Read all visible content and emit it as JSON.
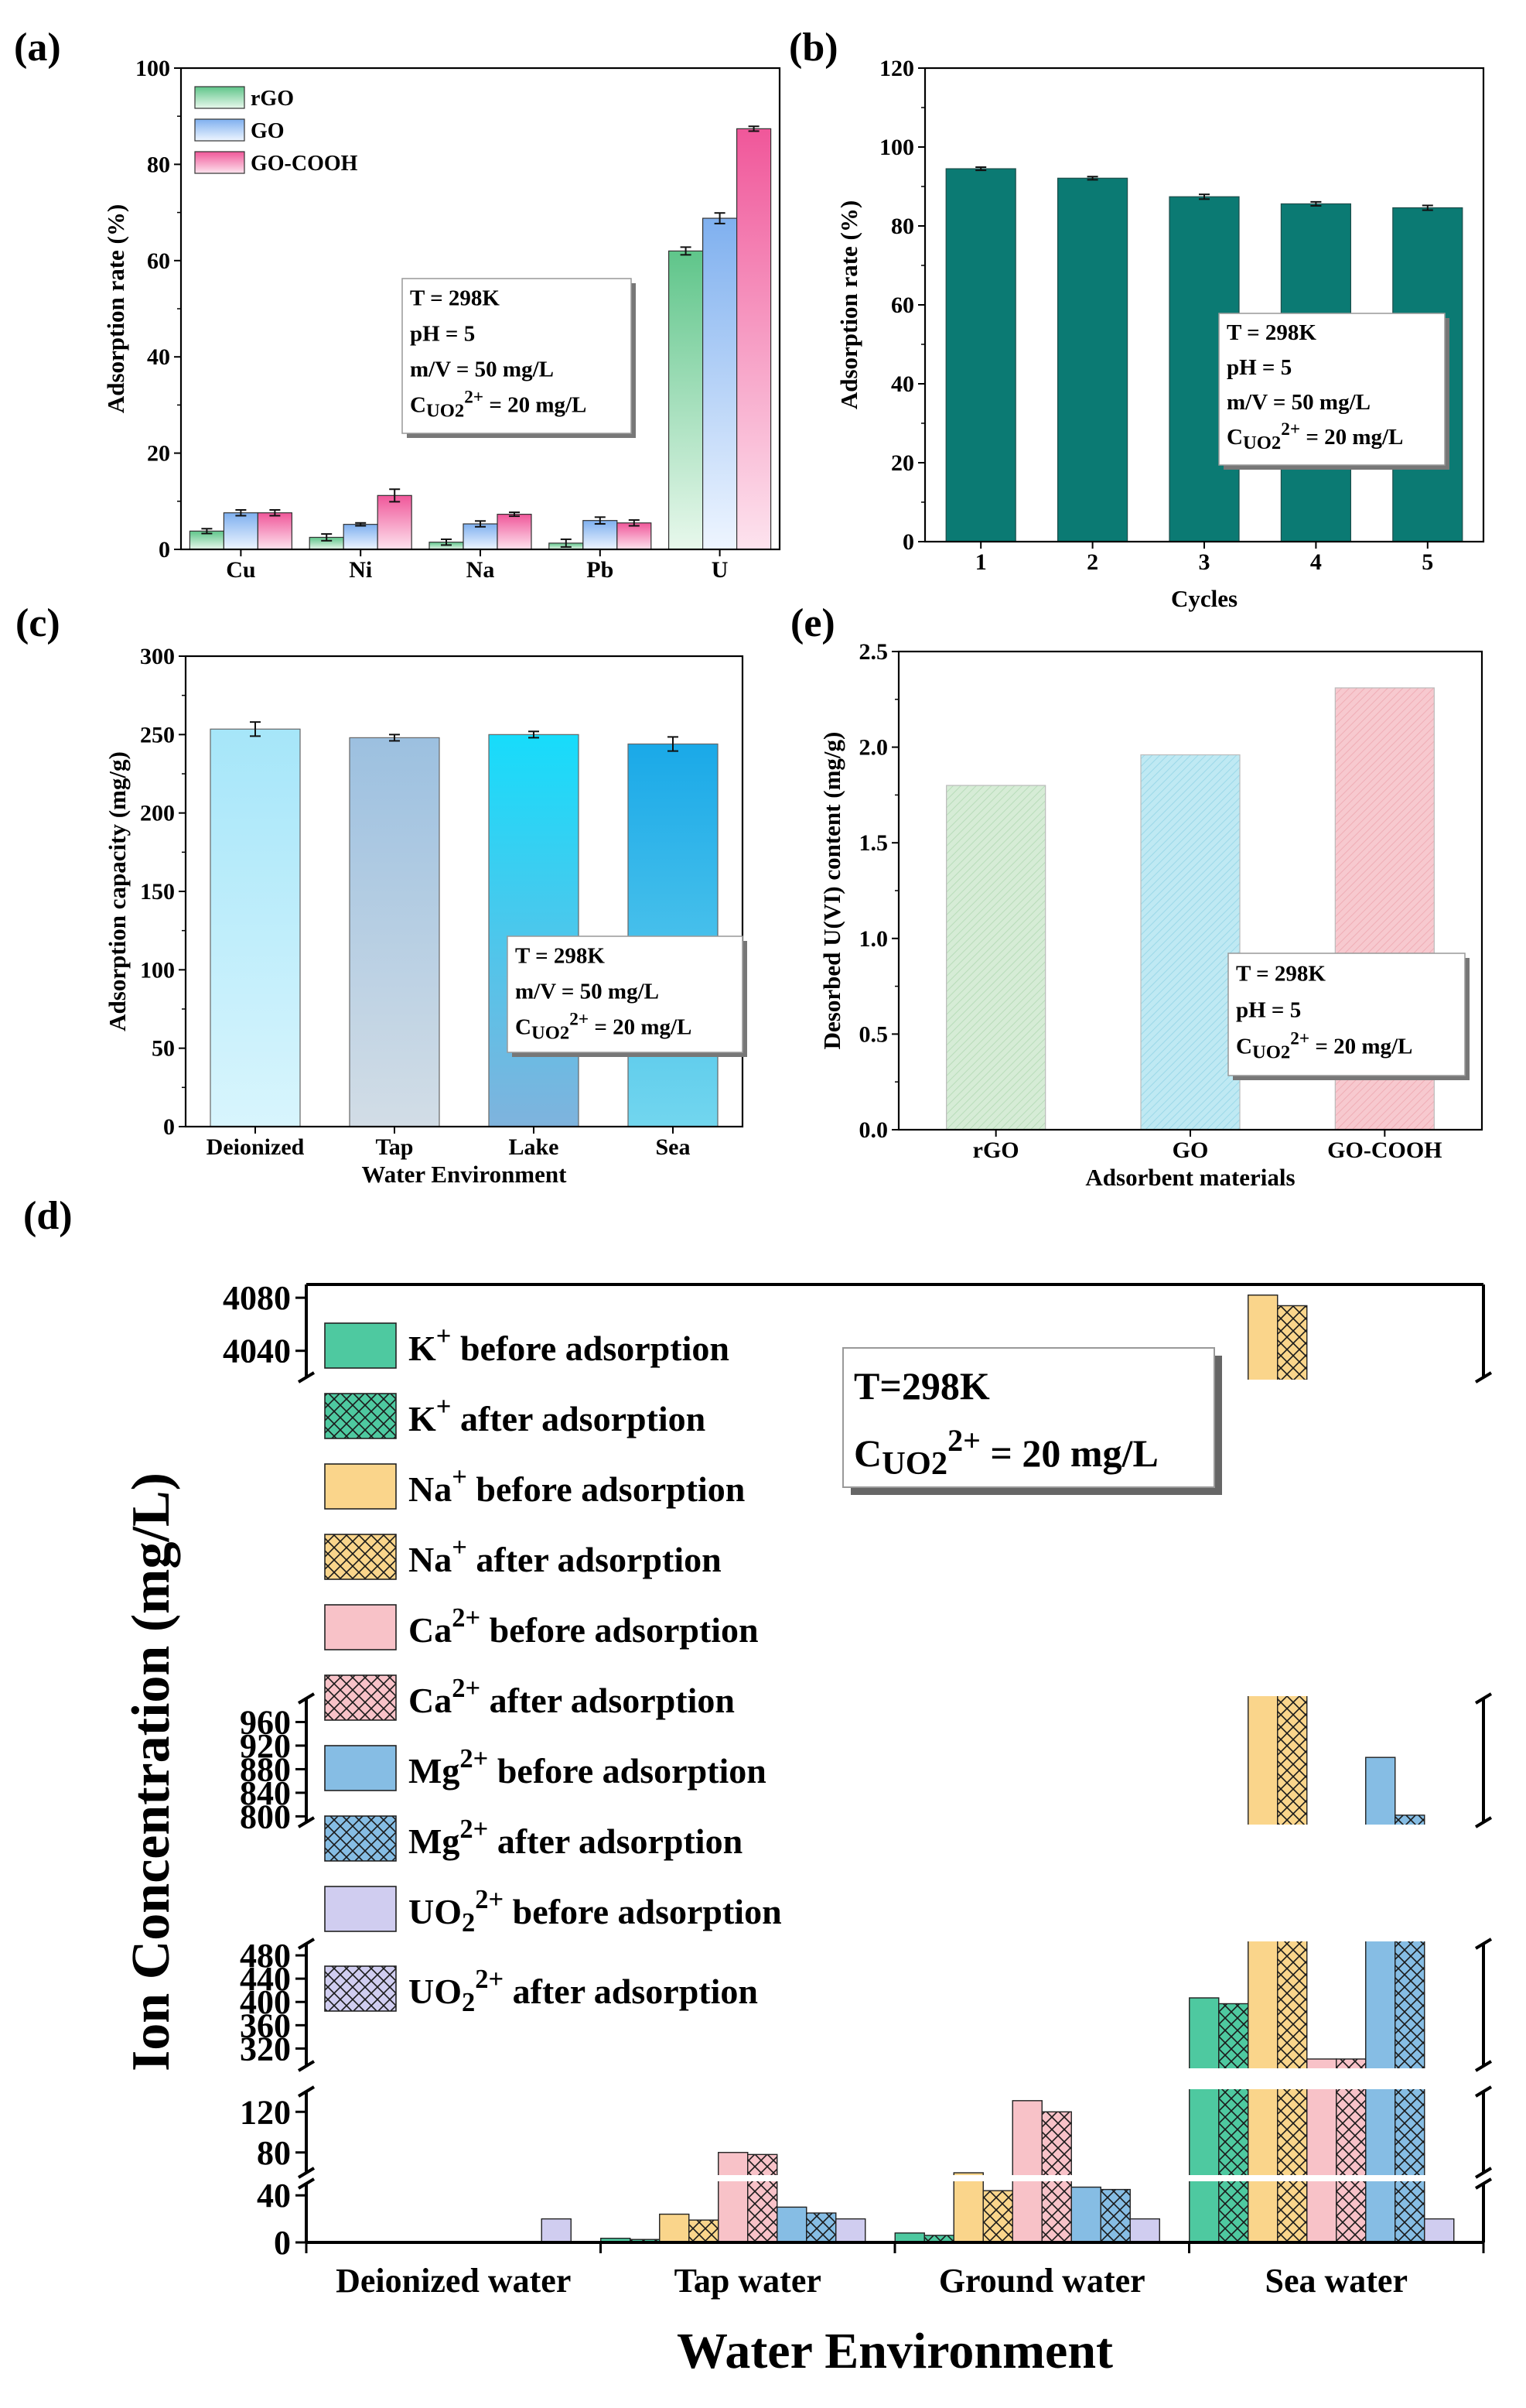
{
  "panels": [
    {
      "id": "a",
      "label": "(a)",
      "annotation": [
        "T = 298K",
        "pH = 5",
        "m/V = 50 mg/L",
        "C_UO2^2+ = 20 mg/L"
      ],
      "chart_data": {
        "type": "bar",
        "title": "",
        "xlabel": "",
        "ylabel": "Adsorption rate (%)",
        "ylim": [
          0,
          100
        ],
        "yticks": [
          0,
          20,
          40,
          60,
          80,
          100
        ],
        "categories": [
          "Cu",
          "Ni",
          "Na",
          "Pb",
          "U"
        ],
        "legend_position": "top-left",
        "series": [
          {
            "name": "rGO",
            "color": "#86d6a1",
            "values": [
              3.8,
              2.5,
              1.5,
              1.3,
              62
            ],
            "errors": [
              0.5,
              0.7,
              0.6,
              0.8,
              0.8
            ]
          },
          {
            "name": "GO",
            "color": "#a3c6f3",
            "values": [
              7.6,
              5.2,
              5.3,
              6.0,
              68.8
            ],
            "errors": [
              0.6,
              0.3,
              0.6,
              0.7,
              1.1
            ]
          },
          {
            "name": "GO-COOH",
            "color": "#f479a8",
            "values": [
              7.6,
              11.2,
              7.3,
              5.5,
              87.4
            ],
            "errors": [
              0.6,
              1.3,
              0.4,
              0.6,
              0.5
            ]
          }
        ]
      }
    },
    {
      "id": "b",
      "label": "(b)",
      "annotation": [
        "T = 298K",
        "pH = 5",
        "m/V = 50 mg/L",
        "C_UO2^2+ = 20 mg/L"
      ],
      "chart_data": {
        "type": "bar",
        "title": "",
        "xlabel": "Cycles",
        "ylabel": "Adsorption rate (%)",
        "ylim": [
          0,
          120
        ],
        "yticks": [
          0,
          20,
          40,
          60,
          80,
          100,
          120
        ],
        "categories": [
          "1",
          "2",
          "3",
          "4",
          "5"
        ],
        "series": [
          {
            "name": "",
            "color": "#0b7a73",
            "values": [
              94.5,
              92.1,
              87.4,
              85.6,
              84.6
            ],
            "errors": [
              0.4,
              0.4,
              0.6,
              0.5,
              0.6
            ]
          }
        ]
      }
    },
    {
      "id": "c",
      "label": "(c)",
      "annotation": [
        "T = 298K",
        "m/V = 50 mg/L",
        "C_UO2^2+ = 20 mg/L"
      ],
      "chart_data": {
        "type": "bar",
        "title": "",
        "xlabel": "Water Environment",
        "ylabel": "Adsorption capacity (mg/g)",
        "ylim": [
          0,
          300
        ],
        "yticks": [
          0,
          50,
          100,
          150,
          200,
          250,
          300
        ],
        "categories": [
          "Deionized",
          "Tap",
          "Lake",
          "Sea"
        ],
        "series": [
          {
            "name": "",
            "colors": [
              "#b9ecfb",
              "#a4c5e3",
              "#1fdcf9",
              "#25bdec"
            ],
            "values": [
              253.5,
              248,
              250,
              244
            ],
            "errors": [
              4.5,
              2.0,
              2.0,
              4.5
            ]
          }
        ]
      }
    },
    {
      "id": "e",
      "label": "(e)",
      "annotation": [
        "T = 298K",
        "pH = 5",
        "C_UO2^2+ = 20 mg/L"
      ],
      "chart_data": {
        "type": "bar",
        "title": "",
        "xlabel": "Adsorbent materials",
        "ylabel": "Desorbed U(VI) content (mg/g)",
        "ylim": [
          0,
          2.5
        ],
        "yticks": [
          0.0,
          0.5,
          1.0,
          1.5,
          2.0,
          2.5
        ],
        "categories": [
          "rGO",
          "GO",
          "GO-COOH"
        ],
        "series": [
          {
            "name": "",
            "colors": [
              "#d6ecd6",
              "#bfe9f3",
              "#f7c9cf"
            ],
            "values": [
              1.8,
              1.96,
              2.31
            ]
          }
        ]
      }
    },
    {
      "id": "d",
      "label": "(d)",
      "annotation": [
        "T=298K",
        "C_UO2^2+ = 20 mg/L"
      ],
      "chart_data": {
        "type": "bar",
        "title": "",
        "xlabel": "Water Environment",
        "ylabel": "Ion Concentration (mg/L)",
        "y_axis": "broken",
        "y_segments": [
          {
            "range": [
              0,
              50
            ],
            "ticks": [
              0,
              40
            ]
          },
          {
            "range": [
              60,
              140
            ],
            "ticks": [
              80,
              120
            ]
          },
          {
            "range": [
              290,
              500
            ],
            "ticks": [
              320,
              360,
              400,
              440,
              480
            ]
          },
          {
            "range": [
              790,
              1000
            ],
            "ticks": [
              800,
              840,
              880,
              920,
              960
            ]
          },
          {
            "range": [
              4020,
              4090
            ],
            "ticks": [
              4040,
              4080
            ]
          }
        ],
        "categories": [
          "Deionized water",
          "Tap water",
          "Ground water",
          "Sea water"
        ],
        "series": [
          {
            "name": "K+ before adsorption",
            "color": "#4ec9a0",
            "hatched": false,
            "values": [
              0,
              3.5,
              8,
              407
            ]
          },
          {
            "name": "K+ after adsorption",
            "color": "#4ec9a0",
            "hatched": true,
            "values": [
              0,
              2.5,
              6,
              397
            ]
          },
          {
            "name": "Na+ before adsorption",
            "color": "#fad58b",
            "hatched": false,
            "values": [
              0,
              24,
              55,
              4082
            ]
          },
          {
            "name": "Na+ after adsorption",
            "color": "#fad58b",
            "hatched": true,
            "values": [
              0,
              19,
              44,
              4074
            ]
          },
          {
            "name": "Ca2+ before adsorption",
            "color": "#f8c2c8",
            "hatched": false,
            "values": [
              0,
              80,
              131,
              302
            ]
          },
          {
            "name": "Ca2+ after adsorption",
            "color": "#f8c2c8",
            "hatched": true,
            "values": [
              0,
              78,
              120,
              302
            ]
          },
          {
            "name": "Mg2+ before adsorption",
            "color": "#86bde4",
            "hatched": false,
            "values": [
              0,
              30,
              47,
              900
            ]
          },
          {
            "name": "Mg2+ after adsorption",
            "color": "#86bde4",
            "hatched": true,
            "values": [
              0,
              25,
              45,
              802
            ]
          },
          {
            "name": "UO2 2+ before adsorption",
            "color": "#d0cdf0",
            "hatched": false,
            "values": [
              20,
              20,
              20,
              20
            ]
          },
          {
            "name": "UO2 2+ after adsorption",
            "color": "#d0cdf0",
            "hatched": true,
            "values": [
              0,
              0,
              0,
              0
            ]
          }
        ]
      }
    }
  ],
  "legend_d": [
    {
      "base": "K",
      "sup": "+",
      "rest": " before adsorption"
    },
    {
      "base": "K",
      "sup": "+",
      "rest": " after adsorption"
    },
    {
      "base": "Na",
      "sup": "+",
      "rest": " before adsorption"
    },
    {
      "base": "Na",
      "sup": "+",
      "rest": " after adsorption"
    },
    {
      "base": "Ca",
      "sup": "2+",
      "rest": " before adsorption"
    },
    {
      "base": "Ca",
      "sup": "2+",
      "rest": " after adsorption"
    },
    {
      "base": "Mg",
      "sup": "2+",
      "rest": " before adsorption"
    },
    {
      "base": "Mg",
      "sup": "2+",
      "rest": " after adsorption"
    },
    {
      "base": "UO",
      "sub": "2",
      "sup": "2+",
      "rest": " before adsorption"
    },
    {
      "base": "UO",
      "sub": "2",
      "sup": "2+",
      "rest": " after adsorption"
    }
  ]
}
